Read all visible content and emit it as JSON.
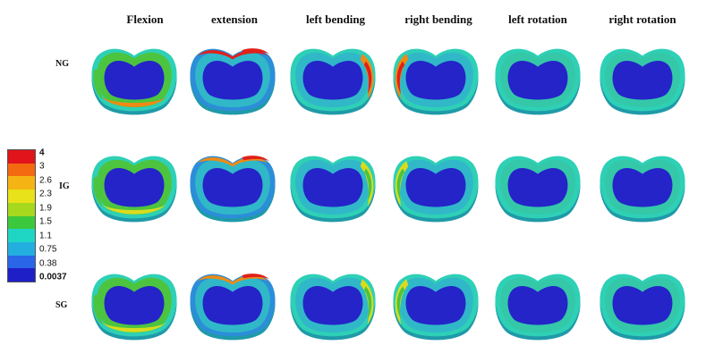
{
  "columns": [
    "Flexion",
    "extension",
    "left bending",
    "right bending",
    "left rotation",
    "right rotation"
  ],
  "rows": [
    "NG",
    "IG",
    "SG"
  ],
  "legend": {
    "ticks": [
      "4",
      "3",
      "2.6",
      "2.3",
      "1.9",
      "1.5",
      "1.1",
      "0.75",
      "0.38",
      "0.0037"
    ],
    "colors": [
      "#e0141a",
      "#f46a10",
      "#f6b414",
      "#e8e21a",
      "#a6d81e",
      "#3cc83c",
      "#1fd6c4",
      "#23aee0",
      "#2a66e8",
      "#1f1fc8"
    ]
  },
  "palette": {
    "core": "#2424c8",
    "ring_cyan": "#2ed0b6",
    "ring_green": "#4cc440",
    "ring_yellow": "#d8dc1e",
    "ring_orange": "#f08a14",
    "ring_red": "#e0201a",
    "ring_blue": "#2c8ed8"
  }
}
